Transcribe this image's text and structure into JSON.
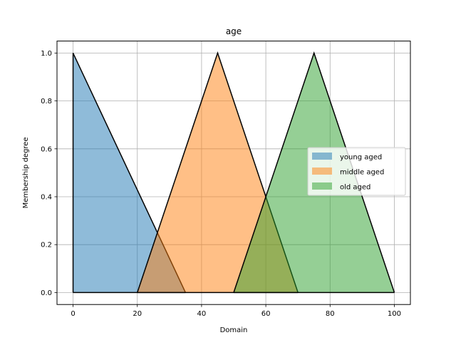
{
  "chart_data": {
    "type": "area",
    "title": "age",
    "xlabel": "Domain",
    "ylabel": "Membership degree",
    "xlim": [
      -5,
      105
    ],
    "ylim": [
      -0.05,
      1.05
    ],
    "grid": true,
    "legend_position": "center-right",
    "xticks": [
      "0",
      "20",
      "40",
      "60",
      "80",
      "100"
    ],
    "xtick_values": [
      0,
      20,
      40,
      60,
      80,
      100
    ],
    "yticks": [
      "0.0",
      "0.2",
      "0.4",
      "0.6",
      "0.8",
      "1.0"
    ],
    "ytick_values": [
      0.0,
      0.2,
      0.4,
      0.6,
      0.8,
      1.0
    ],
    "series": [
      {
        "name": "young aged",
        "color": "#1f77b4",
        "x": [
          0,
          0,
          35,
          35
        ],
        "y": [
          0,
          1,
          0,
          0
        ]
      },
      {
        "name": "middle aged",
        "color": "#ff7f0e",
        "x": [
          20,
          45,
          70
        ],
        "y": [
          0,
          1,
          0
        ]
      },
      {
        "name": "old aged",
        "color": "#2ca02c",
        "x": [
          50,
          75,
          100
        ],
        "y": [
          0,
          1,
          0
        ]
      }
    ]
  }
}
